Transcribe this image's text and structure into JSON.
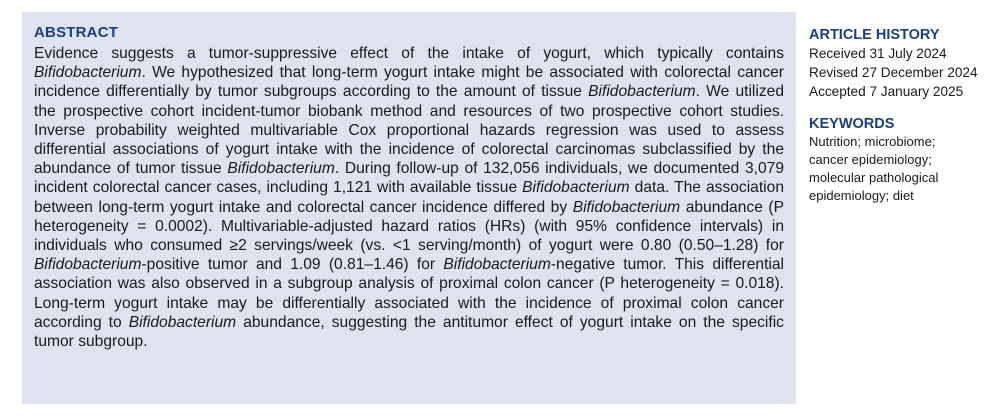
{
  "abstract": {
    "heading": "ABSTRACT",
    "segments": [
      {
        "t": "Evidence suggests a tumor-suppressive effect of the intake of yogurt, which typically contains "
      },
      {
        "t": "Bifidobacterium",
        "i": true
      },
      {
        "t": ". We hypothesized that long-term yogurt intake might be associated with colorectal cancer incidence differentially by tumor subgroups according to the amount of tissue "
      },
      {
        "t": "Bifidobacterium",
        "i": true
      },
      {
        "t": ". We utilized the prospective cohort incident-tumor biobank method and resources of two prospective cohort studies. Inverse probability weighted multivariable Cox proportional hazards regression was used to assess differential associations of yogurt intake with the incidence of colorectal carcinomas subclassified by the abundance of tumor tissue "
      },
      {
        "t": "Bifidobacterium",
        "i": true
      },
      {
        "t": ". During follow-up of 132,056 individuals, we documented 3,079 incident colorectal cancer cases, including 1,121 with available tissue "
      },
      {
        "t": "Bifidobacterium",
        "i": true
      },
      {
        "t": " data. The association between long-term yogurt intake and colorectal cancer incidence differed by "
      },
      {
        "t": "Bifidobacterium",
        "i": true
      },
      {
        "t": " abundance (P heterogeneity = 0.0002). Multivariable-adjusted hazard ratios (HRs) (with 95% confidence intervals) in individuals who consumed ≥2 servings/week (vs. <1 serving/month) of yogurt were 0.80 (0.50–1.28) for "
      },
      {
        "t": "Bifidobacterium",
        "i": true
      },
      {
        "t": "-positive tumor and 1.09 (0.81–1.46) for "
      },
      {
        "t": "Bifidobacterium",
        "i": true
      },
      {
        "t": "-negative tumor. This differential association was also observed in a subgroup analysis of proximal colon cancer (P heterogeneity = 0.018). Long-term yogurt intake may be differentially associated with the incidence of proximal colon cancer according to "
      },
      {
        "t": "Bifidobacterium",
        "i": true
      },
      {
        "t": " abundance, suggesting the antitumor effect of yogurt intake on the specific tumor subgroup."
      }
    ]
  },
  "article_history": {
    "heading": "ARTICLE HISTORY",
    "lines": [
      "Received 31 July 2024",
      "Revised 27 December 2024",
      "Accepted 7 January 2025"
    ]
  },
  "keywords": {
    "heading": "KEYWORDS",
    "lines": [
      "Nutrition; microbiome;",
      "cancer epidemiology;",
      "molecular pathological",
      "epidemiology; diet"
    ]
  },
  "colors": {
    "heading": "#1b3f7c",
    "abstract_background": "#dfe3ef"
  }
}
